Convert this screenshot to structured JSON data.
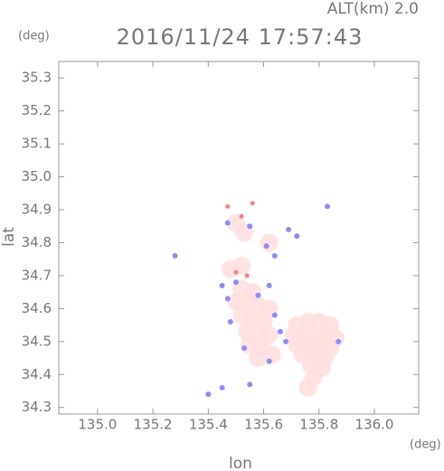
{
  "chart_data": {
    "type": "scatter",
    "title": "2016/11/24 17:57:43",
    "subtitle": "ALT(km)  2.0",
    "x_label": "lon",
    "y_label": "lat",
    "x_unit": "(deg)",
    "y_unit": "(deg)",
    "xlim": [
      134.86,
      136.16
    ],
    "ylim": [
      34.28,
      35.35
    ],
    "xticks": [
      {
        "value": 135,
        "label": "135.0"
      },
      135.2,
      135.4,
      135.6,
      135.8,
      {
        "value": 136,
        "label": "136.0"
      }
    ],
    "yticks": [
      34.3,
      34.4,
      34.5,
      34.6,
      34.7,
      34.8,
      34.9,
      {
        "value": 35,
        "label": "35.0"
      },
      35.1,
      35.2,
      35.3
    ],
    "series": [
      {
        "color": "#ffdede",
        "x": [
          135.72,
          135.76,
          135.8,
          135.84,
          135.71,
          135.75,
          135.79,
          135.83,
          135.86,
          135.72,
          135.76,
          135.8,
          135.84,
          135.74,
          135.78,
          135.82,
          135.77,
          135.81,
          135.78,
          135.76,
          135.52,
          135.56,
          135.5,
          135.54,
          135.58,
          135.62,
          135.52,
          135.56,
          135.6,
          135.54,
          135.58,
          135.62,
          135.55,
          135.59,
          135.63,
          135.58,
          135.5,
          135.53,
          135.62,
          135.48,
          135.52
        ],
        "values": [
          34.55,
          34.56,
          34.56,
          34.55,
          34.52,
          34.52,
          34.52,
          34.52,
          34.51,
          34.49,
          34.49,
          34.49,
          34.48,
          34.46,
          34.46,
          34.45,
          34.43,
          34.42,
          34.39,
          34.36,
          34.66,
          34.65,
          34.62,
          34.62,
          34.61,
          34.6,
          34.58,
          34.57,
          34.56,
          34.53,
          34.52,
          34.52,
          34.49,
          34.48,
          34.46,
          34.45,
          34.86,
          34.83,
          34.8,
          34.72,
          34.73
        ]
      },
      {
        "color": "#7f7fff",
        "x": [
          135.28,
          135.47,
          135.55,
          135.61,
          135.69,
          135.72,
          135.64,
          135.45,
          135.5,
          135.62,
          135.58,
          135.47,
          135.64,
          135.66,
          135.68,
          135.53,
          135.62,
          135.87,
          135.4,
          135.45,
          135.55,
          135.83,
          135.48
        ],
        "values": [
          34.76,
          34.86,
          34.85,
          34.79,
          34.84,
          34.82,
          34.76,
          34.67,
          34.68,
          34.67,
          34.64,
          34.63,
          34.58,
          34.53,
          34.5,
          34.48,
          34.44,
          34.5,
          34.34,
          34.36,
          34.37,
          34.91,
          34.56
        ]
      },
      {
        "color": "#ff6f6f",
        "x": [
          135.47,
          135.56,
          135.52,
          135.54,
          135.5
        ],
        "values": [
          34.91,
          34.92,
          34.88,
          34.7,
          34.71
        ]
      }
    ]
  }
}
